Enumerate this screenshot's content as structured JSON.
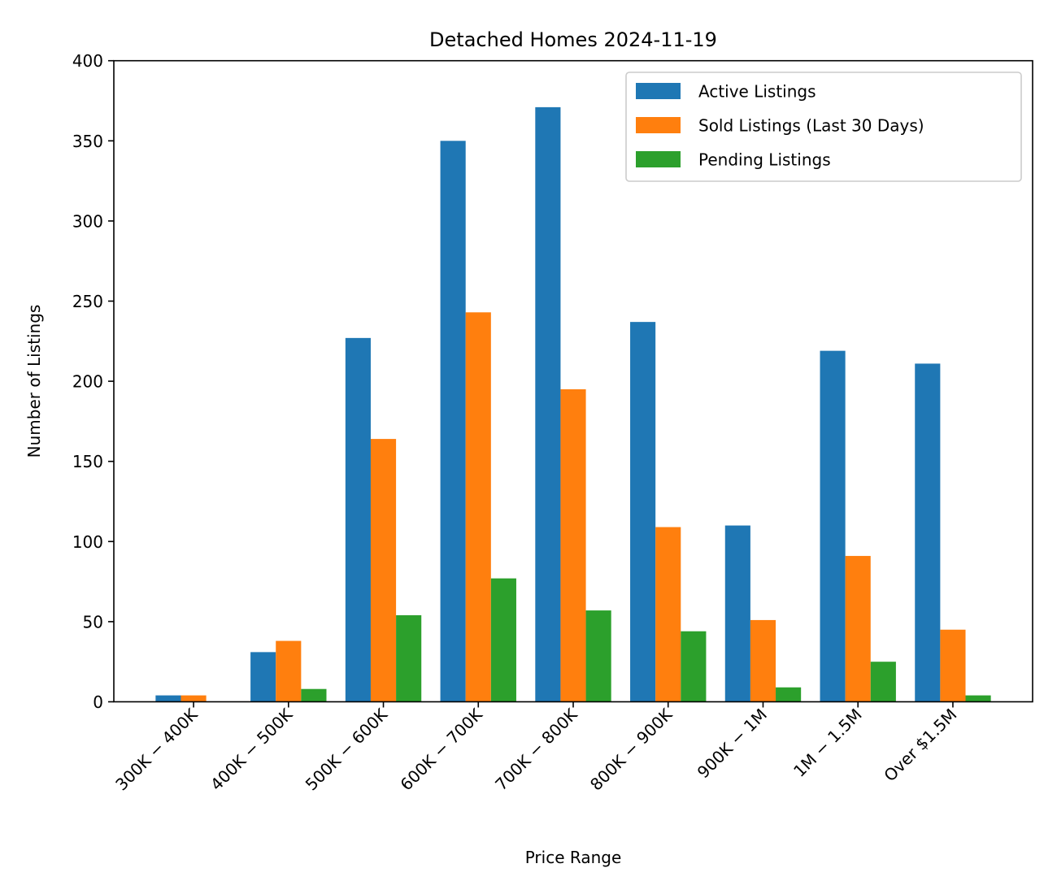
{
  "chart_data": {
    "type": "bar",
    "title": "Detached Homes 2024-11-19",
    "xlabel": "Price Range",
    "ylabel": "Number of Listings",
    "ylim": [
      0,
      400
    ],
    "yticks": [
      0,
      50,
      100,
      150,
      200,
      250,
      300,
      350,
      400
    ],
    "grid": false,
    "legend_position": "top-right",
    "categories": [
      "300K − 400K",
      "400K − 500K",
      "500K − 600K",
      "600K − 700K",
      "700K − 800K",
      "800K − 900K",
      "900K − 1M",
      "1M − 1.5M",
      "Over $1.5M"
    ],
    "series": [
      {
        "name": "Active Listings",
        "color": "#1f77b4",
        "values": [
          4,
          31,
          227,
          350,
          371,
          237,
          110,
          219,
          211
        ]
      },
      {
        "name": "Sold Listings (Last 30 Days)",
        "color": "#ff7f0e",
        "values": [
          4,
          38,
          164,
          243,
          195,
          109,
          51,
          91,
          45
        ]
      },
      {
        "name": "Pending Listings",
        "color": "#2ca02c",
        "values": [
          0,
          8,
          54,
          77,
          57,
          44,
          9,
          25,
          4
        ]
      }
    ]
  }
}
